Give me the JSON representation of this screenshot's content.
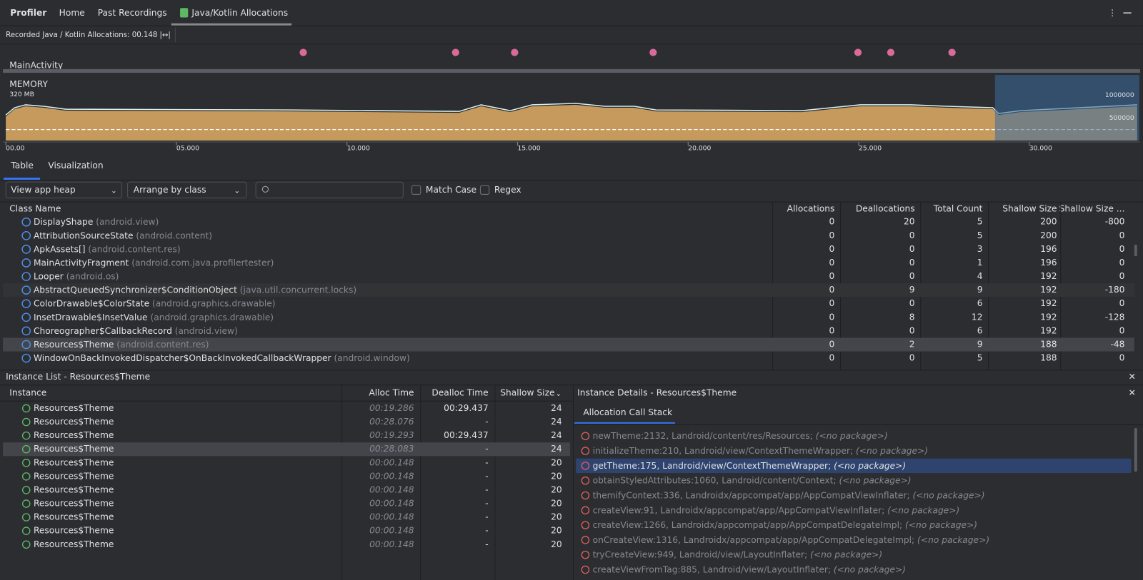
{
  "toolbar": {
    "title": "Profiler",
    "tabs": [
      "Home",
      "Past Recordings",
      "Java/Kotlin Allocations"
    ]
  },
  "recording": {
    "label": "Recorded Java / Kotlin Allocations: 00.148"
  },
  "timeline": {
    "activity": "MainActivity",
    "memory_label": "MEMORY",
    "memory_max": "320 MB",
    "right_labels": [
      "1000000",
      "500000"
    ],
    "ticks": [
      "00.00",
      "05.000",
      "10.000",
      "15.000",
      "20.000",
      "25.000",
      "30.000"
    ]
  },
  "view_tabs": [
    "Table",
    "Visualization"
  ],
  "filters": {
    "heap": "View app heap",
    "arrange": "Arrange by class",
    "match_case": "Match Case",
    "regex": "Regex"
  },
  "class_table": {
    "columns": [
      "Class Name",
      "Allocations",
      "Deallocations",
      "Total Count",
      "Shallow Size",
      "Shallow Size ..."
    ],
    "rows": [
      {
        "name": "DisplayShape",
        "package": "(android.view)",
        "allocations": 0,
        "deallocations": 20,
        "total_count": 5,
        "shallow_size": 200,
        "shallow_size_change": -800
      },
      {
        "name": "AttributionSourceState",
        "package": "(android.content)",
        "allocations": 0,
        "deallocations": 0,
        "total_count": 5,
        "shallow_size": 200,
        "shallow_size_change": 0
      },
      {
        "name": "ApkAssets[]",
        "package": "(android.content.res)",
        "allocations": 0,
        "deallocations": 0,
        "total_count": 3,
        "shallow_size": 196,
        "shallow_size_change": 0
      },
      {
        "name": "MainActivityFragment",
        "package": "(android.com.java.profilertester)",
        "allocations": 0,
        "deallocations": 0,
        "total_count": 1,
        "shallow_size": 196,
        "shallow_size_change": 0
      },
      {
        "name": "Looper",
        "package": "(android.os)",
        "allocations": 0,
        "deallocations": 0,
        "total_count": 4,
        "shallow_size": 192,
        "shallow_size_change": 0
      },
      {
        "name": "AbstractQueuedSynchronizer$ConditionObject",
        "package": "(java.util.concurrent.locks)",
        "allocations": 0,
        "deallocations": 9,
        "total_count": 9,
        "shallow_size": 192,
        "shallow_size_change": -180
      },
      {
        "name": "ColorDrawable$ColorState",
        "package": "(android.graphics.drawable)",
        "allocations": 0,
        "deallocations": 0,
        "total_count": 6,
        "shallow_size": 192,
        "shallow_size_change": 0
      },
      {
        "name": "InsetDrawable$InsetValue",
        "package": "(android.graphics.drawable)",
        "allocations": 0,
        "deallocations": 8,
        "total_count": 12,
        "shallow_size": 192,
        "shallow_size_change": -128
      },
      {
        "name": "Choreographer$CallbackRecord",
        "package": "(android.view)",
        "allocations": 0,
        "deallocations": 0,
        "total_count": 6,
        "shallow_size": 192,
        "shallow_size_change": 0
      },
      {
        "name": "Resources$Theme",
        "package": "(android.content.res)",
        "allocations": 0,
        "deallocations": 2,
        "total_count": 9,
        "shallow_size": 188,
        "shallow_size_change": -48
      },
      {
        "name": "WindowOnBackInvokedDispatcher$OnBackInvokedCallbackWrapper",
        "package": "(android.window)",
        "allocations": 0,
        "deallocations": 0,
        "total_count": 5,
        "shallow_size": 188,
        "shallow_size_change": 0
      }
    ]
  },
  "instance_list": {
    "title": "Instance List - Resources$Theme",
    "columns": [
      "Instance",
      "Alloc Time",
      "Dealloc Time",
      "Shallow Size"
    ],
    "rows": [
      {
        "instance": "Resources$Theme",
        "alloc_time": "00:19.286",
        "dealloc_time": "00:29.437",
        "shallow_size": 24
      },
      {
        "instance": "Resources$Theme",
        "alloc_time": "00:28.076",
        "dealloc_time": "-",
        "shallow_size": 24
      },
      {
        "instance": "Resources$Theme",
        "alloc_time": "00:19.293",
        "dealloc_time": "00:29.437",
        "shallow_size": 24
      },
      {
        "instance": "Resources$Theme",
        "alloc_time": "00:28.083",
        "dealloc_time": "-",
        "shallow_size": 24
      },
      {
        "instance": "Resources$Theme",
        "alloc_time": "00:00.148",
        "dealloc_time": "-",
        "shallow_size": 20
      },
      {
        "instance": "Resources$Theme",
        "alloc_time": "00:00.148",
        "dealloc_time": "-",
        "shallow_size": 20
      },
      {
        "instance": "Resources$Theme",
        "alloc_time": "00:00.148",
        "dealloc_time": "-",
        "shallow_size": 20
      },
      {
        "instance": "Resources$Theme",
        "alloc_time": "00:00.148",
        "dealloc_time": "-",
        "shallow_size": 20
      },
      {
        "instance": "Resources$Theme",
        "alloc_time": "00:00.148",
        "dealloc_time": "-",
        "shallow_size": 20
      },
      {
        "instance": "Resources$Theme",
        "alloc_time": "00:00.148",
        "dealloc_time": "-",
        "shallow_size": 20
      },
      {
        "instance": "Resources$Theme",
        "alloc_time": "00:00.148",
        "dealloc_time": "-",
        "shallow_size": 20
      }
    ]
  },
  "instance_details": {
    "title": "Instance Details - Resources$Theme",
    "tab": "Allocation Call Stack",
    "frames": [
      {
        "method": "newTheme:2132, Landroid/content/res/Resources;",
        "package": "(<no package>)"
      },
      {
        "method": "initializeTheme:210, Landroid/view/ContextThemeWrapper;",
        "package": "(<no package>)"
      },
      {
        "method": "getTheme:175, Landroid/view/ContextThemeWrapper;",
        "package": "(<no package>)"
      },
      {
        "method": "obtainStyledAttributes:1060, Landroid/content/Context;",
        "package": "(<no package>)"
      },
      {
        "method": "themifyContext:336, Landroidx/appcompat/app/AppCompatViewInflater;",
        "package": "(<no package>)"
      },
      {
        "method": "createView:91, Landroidx/appcompat/app/AppCompatViewInflater;",
        "package": "(<no package>)"
      },
      {
        "method": "createView:1266, Landroidx/appcompat/app/AppCompatDelegateImpl;",
        "package": "(<no package>)"
      },
      {
        "method": "onCreateView:1316, Landroidx/appcompat/app/AppCompatDelegateImpl;",
        "package": "(<no package>)"
      },
      {
        "method": "tryCreateView:949, Landroid/view/LayoutInflater;",
        "package": "(<no package>)"
      },
      {
        "method": "createViewFromTag:885, Landroid/view/LayoutInflater;",
        "package": "(<no package>)"
      }
    ]
  }
}
